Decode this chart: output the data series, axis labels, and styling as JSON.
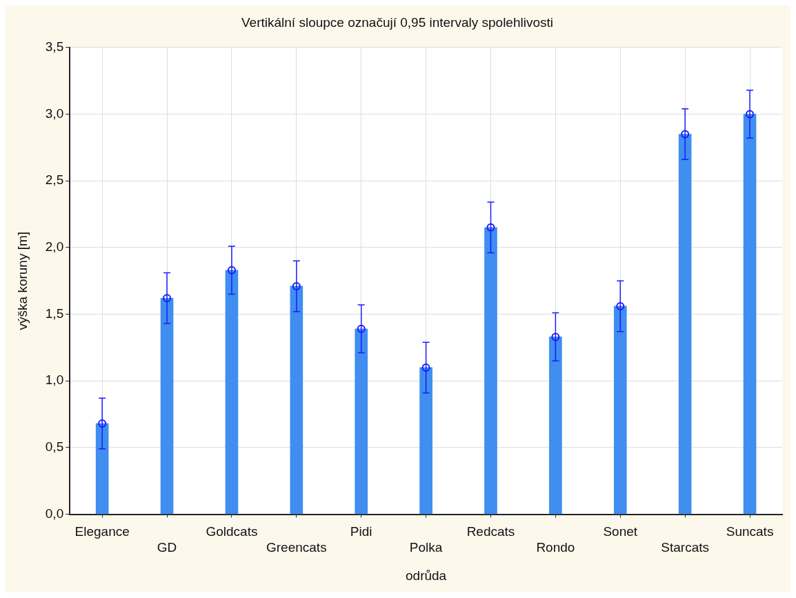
{
  "chart_data": {
    "type": "bar",
    "title": "Vertikální sloupce označují 0,95 intervaly spolehlivosti",
    "xlabel": "odrůda",
    "ylabel": "výška koruny [m]",
    "categories": [
      "Elegance",
      "GD",
      "Goldcats",
      "Greencats",
      "Pidi",
      "Polka",
      "Redcats",
      "Rondo",
      "Sonet",
      "Starcats",
      "Suncats"
    ],
    "series": [
      {
        "color": "#3f8ef0",
        "values": [
          0.68,
          1.62,
          1.83,
          1.71,
          1.39,
          1.1,
          2.15,
          1.33,
          1.56,
          2.85,
          3.0
        ],
        "errors": [
          0.19,
          0.19,
          0.18,
          0.19,
          0.18,
          0.19,
          0.19,
          0.18,
          0.19,
          0.19,
          0.18
        ]
      },
      {
        "type": "scatter",
        "color": "#1a1aff",
        "marker": "circle",
        "values": [
          0.68,
          1.62,
          1.83,
          1.71,
          1.39,
          1.1,
          2.15,
          1.33,
          1.56,
          2.85,
          3.0
        ]
      }
    ],
    "ylim": [
      0,
      3.5
    ],
    "yticks": [
      {
        "value": 0,
        "label": "0,0"
      },
      {
        "value": 0.5,
        "label": "0,5"
      },
      {
        "value": 1,
        "label": "1,0"
      },
      {
        "value": 1.5,
        "label": "1,5"
      },
      {
        "value": 2,
        "label": "2,0"
      },
      {
        "value": 2.5,
        "label": "2,5"
      },
      {
        "value": 3,
        "label": "3,0"
      },
      {
        "value": 3.5,
        "label": "3,5"
      }
    ],
    "grid": true,
    "legend": false
  }
}
